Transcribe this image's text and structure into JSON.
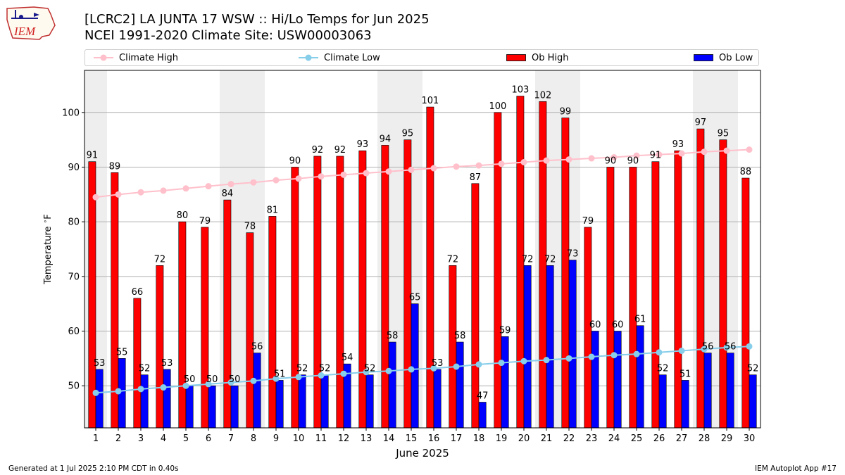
{
  "header": {
    "title_line1": "[LCRC2] LA JUNTA 17 WSW :: Hi/Lo Temps for Jun 2025",
    "title_line2": "NCEI 1991-2020 Climate Site: USW00003063",
    "logo_text": "IEM"
  },
  "legend": {
    "climate_high": "Climate High",
    "climate_low": "Climate Low",
    "ob_high": "Ob High",
    "ob_low": "Ob Low"
  },
  "footer": {
    "generated": "Generated at 1 Jul 2025 2:10 PM CDT in 0.40s",
    "app": "IEM Autoplot App #17"
  },
  "colors": {
    "ob_high": "#ff0000",
    "ob_low": "#0000ff",
    "climate_high": "#ffc0cb",
    "climate_low": "#87ceeb",
    "weekend_shade": "#eeeeee",
    "grid": "#b0b0b0"
  },
  "chart_data": {
    "type": "bar",
    "title": "[LCRC2] LA JUNTA 17 WSW :: Hi/Lo Temps for Jun 2025",
    "subtitle": "NCEI 1991-2020 Climate Site: USW00003063",
    "xlabel": "June 2025",
    "ylabel": "Temperature $^\\circ$F",
    "ylim": [
      42.3,
      107.7
    ],
    "yticks": [
      50,
      60,
      70,
      80,
      90,
      100
    ],
    "grid": "horizontal",
    "legend_position": "top",
    "categories": [
      "1",
      "2",
      "3",
      "4",
      "5",
      "6",
      "7",
      "8",
      "9",
      "10",
      "11",
      "12",
      "13",
      "14",
      "15",
      "16",
      "17",
      "18",
      "19",
      "20",
      "21",
      "22",
      "23",
      "24",
      "25",
      "26",
      "27",
      "28",
      "29",
      "30"
    ],
    "shaded_days": [
      [
        1,
        1
      ],
      [
        7,
        8
      ],
      [
        14,
        15
      ],
      [
        21,
        22
      ],
      [
        28,
        29
      ]
    ],
    "series": [
      {
        "name": "Ob High",
        "kind": "bar",
        "values": [
          91,
          89,
          66,
          72,
          80,
          79,
          84,
          78,
          81,
          90,
          92,
          92,
          93,
          94,
          95,
          101,
          72,
          87,
          100,
          103,
          102,
          99,
          79,
          90,
          90,
          91,
          93,
          97,
          95,
          88
        ]
      },
      {
        "name": "Ob Low",
        "kind": "bar",
        "values": [
          53,
          55,
          52,
          53,
          50,
          50,
          50,
          56,
          51,
          52,
          52,
          54,
          52,
          58,
          65,
          53,
          58,
          47,
          59,
          72,
          72,
          73,
          60,
          60,
          61,
          52,
          51,
          56,
          56,
          52
        ]
      },
      {
        "name": "Climate High",
        "kind": "line",
        "values": [
          84.5,
          85.0,
          85.4,
          85.7,
          86.1,
          86.5,
          86.9,
          87.2,
          87.6,
          87.9,
          88.3,
          88.6,
          88.9,
          89.2,
          89.5,
          89.8,
          90.1,
          90.3,
          90.6,
          90.9,
          91.2,
          91.4,
          91.6,
          91.8,
          92.1,
          92.3,
          92.5,
          92.8,
          93.0,
          93.2
        ]
      },
      {
        "name": "Climate Low",
        "kind": "line",
        "values": [
          48.7,
          49.0,
          49.4,
          49.7,
          50.0,
          50.3,
          50.6,
          50.9,
          51.3,
          51.6,
          51.9,
          52.2,
          52.5,
          52.7,
          53.0,
          53.2,
          53.5,
          53.9,
          54.2,
          54.5,
          54.7,
          55.0,
          55.3,
          55.6,
          55.8,
          56.1,
          56.4,
          56.7,
          57.0,
          57.2
        ]
      }
    ]
  }
}
